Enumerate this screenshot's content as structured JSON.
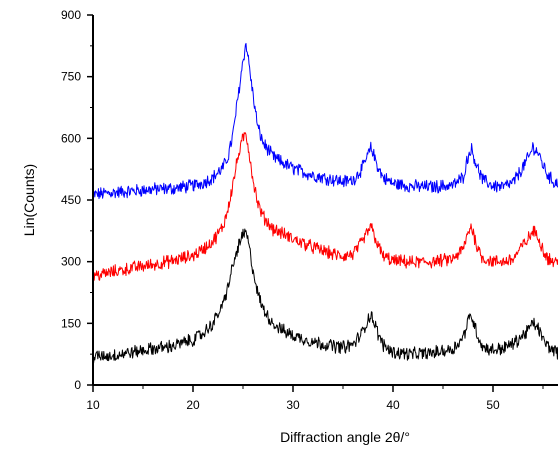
{
  "chart_data": {
    "type": "line",
    "title": "",
    "xlabel": "Diffraction angle 2θ/°",
    "ylabel": "Lin(Counts)",
    "xlim": [
      10,
      56.5
    ],
    "ylim": [
      0,
      900
    ],
    "xticks": [
      10,
      20,
      30,
      40,
      50
    ],
    "yticks": [
      0,
      150,
      300,
      450,
      600,
      750,
      900
    ],
    "grid": false,
    "legend": "none",
    "series": [
      {
        "color": "#0000ff",
        "noise_amplitude": 14,
        "x": [
          10,
          12,
          14,
          16,
          18,
          20,
          21,
          22,
          23,
          23.5,
          24,
          24.5,
          25,
          25.3,
          25.5,
          26,
          26.5,
          27,
          28,
          29,
          30,
          32,
          34,
          35,
          36,
          37,
          37.5,
          37.8,
          38,
          38.5,
          39,
          40,
          42,
          44,
          46,
          47,
          47.5,
          47.8,
          48,
          48.5,
          49,
          50,
          51,
          52,
          53,
          53.7,
          54,
          54.5,
          55,
          55.5,
          56,
          56.5
        ],
        "y": [
          463,
          468,
          472,
          476,
          478,
          485,
          492,
          505,
          528,
          555,
          610,
          700,
          790,
          830,
          800,
          705,
          625,
          590,
          555,
          540,
          527,
          510,
          500,
          495,
          498,
          530,
          560,
          576,
          565,
          530,
          505,
          490,
          483,
          482,
          486,
          505,
          555,
          576,
          563,
          525,
          498,
          485,
          482,
          492,
          530,
          560,
          580,
          565,
          535,
          510,
          495,
          490
        ]
      },
      {
        "color": "#ff0000",
        "noise_amplitude": 14,
        "x": [
          10,
          12,
          14,
          16,
          18,
          20,
          21,
          22,
          23,
          23.5,
          24,
          24.5,
          25,
          25.3,
          25.5,
          26,
          26.5,
          27,
          28,
          29,
          30,
          32,
          34,
          35,
          36,
          37,
          37.5,
          37.8,
          38,
          38.5,
          39,
          40,
          42,
          44,
          46,
          47,
          47.5,
          47.8,
          48,
          48.5,
          49,
          50,
          51,
          52,
          53,
          53.7,
          54,
          54.5,
          55,
          55.5,
          56,
          56.5
        ],
        "y": [
          265,
          275,
          285,
          293,
          302,
          315,
          330,
          350,
          385,
          430,
          490,
          555,
          600,
          610,
          585,
          500,
          440,
          410,
          380,
          368,
          355,
          335,
          318,
          313,
          318,
          350,
          375,
          385,
          372,
          340,
          313,
          302,
          298,
          300,
          306,
          330,
          368,
          388,
          372,
          330,
          308,
          300,
          300,
          306,
          340,
          362,
          375,
          362,
          330,
          308,
          300,
          298
        ]
      },
      {
        "color": "#000000",
        "noise_amplitude": 14,
        "x": [
          10,
          12,
          14,
          16,
          18,
          20,
          21,
          22,
          23,
          23.5,
          24,
          24.5,
          25,
          25.3,
          25.5,
          26,
          26.5,
          27,
          28,
          29,
          30,
          32,
          34,
          35,
          36,
          37,
          37.5,
          37.8,
          38,
          38.5,
          39,
          40,
          42,
          44,
          46,
          47,
          47.5,
          47.8,
          48,
          48.5,
          49,
          50,
          51,
          52,
          53,
          53.7,
          54,
          54.5,
          55,
          55.5,
          56,
          56.5
        ],
        "y": [
          68,
          72,
          80,
          88,
          95,
          110,
          125,
          150,
          195,
          240,
          290,
          335,
          365,
          370,
          350,
          280,
          220,
          185,
          150,
          132,
          120,
          105,
          95,
          92,
          98,
          130,
          160,
          172,
          160,
          125,
          98,
          80,
          75,
          78,
          88,
          115,
          155,
          170,
          158,
          118,
          92,
          85,
          90,
          100,
          120,
          140,
          150,
          140,
          110,
          95,
          85,
          80
        ]
      }
    ]
  }
}
